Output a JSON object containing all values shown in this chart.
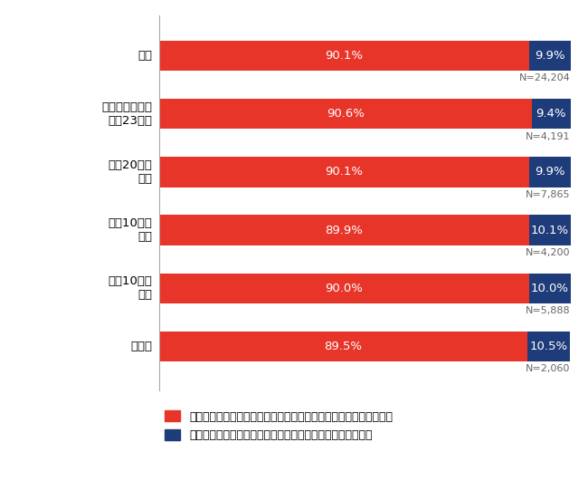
{
  "categories": [
    "全体",
    "政令指定都市・\n東京23区内",
    "人口20万人\n以上",
    "人口10万人\n以上",
    "人口10万人\n未満",
    "町村部"
  ],
  "red_values": [
    90.1,
    90.6,
    90.1,
    89.9,
    90.0,
    89.5
  ],
  "blue_values": [
    9.9,
    9.4,
    9.9,
    10.1,
    10.0,
    10.5
  ],
  "n_values": [
    "N=24,204",
    "N=4,191",
    "N=7,865",
    "N=4,200",
    "N=5,888",
    "N=2,060"
  ],
  "red_color": "#E8352A",
  "blue_color": "#1F3C7A",
  "red_label": "ポイント還元事業終了後も、キャッシュレス支払いを利用している",
  "blue_label": "ポイント還元事業終了後は、キャッシュレス支払いをやめた",
  "bar_height": 0.52,
  "text_color_white": "#FFFFFF",
  "n_text_color": "#666666",
  "background_color": "#FFFFFF",
  "bar_label_fontsize": 9.5,
  "n_fontsize": 8.0,
  "legend_fontsize": 9.0,
  "ytick_fontsize": 9.5
}
